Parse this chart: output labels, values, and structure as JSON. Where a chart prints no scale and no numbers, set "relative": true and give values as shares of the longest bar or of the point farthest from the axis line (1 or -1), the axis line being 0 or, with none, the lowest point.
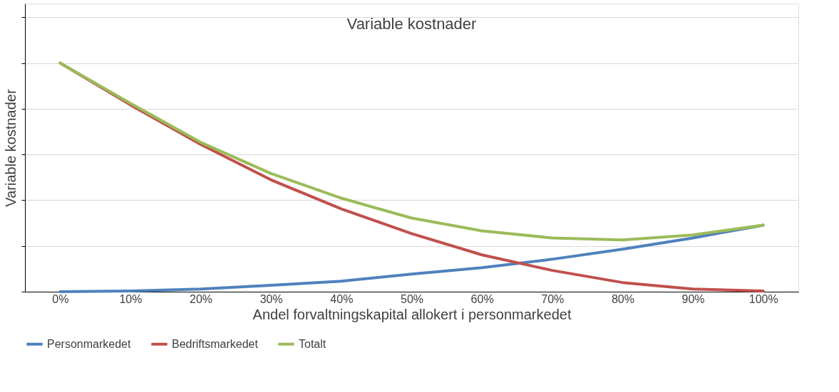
{
  "chart_data": {
    "type": "line",
    "title": "Variable kostnader",
    "xlabel": "Andel forvaltningskapital allokert i personmarkedet",
    "ylabel": "Variable kostnader",
    "relative": true,
    "grid": "y",
    "legend": "bottom",
    "line_style": "solid",
    "marker": "none",
    "categories": [
      "0%",
      "10%",
      "20%",
      "30%",
      "40%",
      "50%",
      "60%",
      "70%",
      "80%",
      "90%",
      "100%"
    ],
    "series": [
      {
        "name": "Personmarkedet",
        "color": "#4f81bd",
        "values": [
          0,
          0.003,
          0.012,
          0.028,
          0.046,
          0.077,
          0.105,
          0.142,
          0.186,
          0.235,
          0.291
        ]
      },
      {
        "name": "Bedriftsmarkedet",
        "color": "#c0504d",
        "values": [
          1,
          0.817,
          0.644,
          0.489,
          0.362,
          0.254,
          0.161,
          0.093,
          0.04,
          0.012,
          0.003
        ]
      },
      {
        "name": "Totalt",
        "color": "#9bbb59",
        "values": [
          1,
          0.824,
          0.653,
          0.517,
          0.409,
          0.322,
          0.266,
          0.235,
          0.226,
          0.248,
          0.291
        ]
      }
    ]
  }
}
